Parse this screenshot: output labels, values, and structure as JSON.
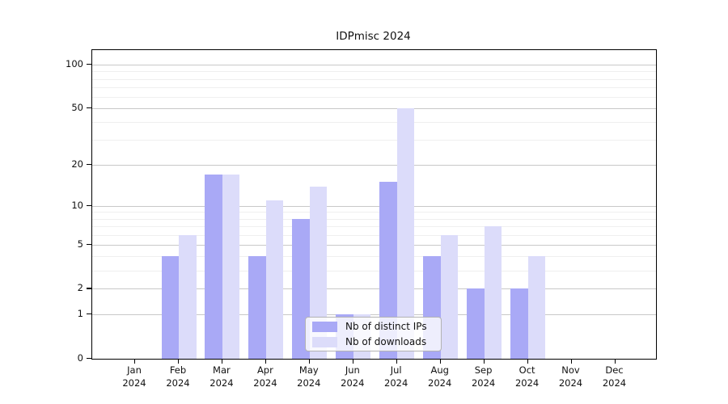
{
  "chart_data": {
    "type": "bar",
    "title": "IDPmisc 2024",
    "year": "2024",
    "categories": [
      "Jan",
      "Feb",
      "Mar",
      "Apr",
      "May",
      "Jun",
      "Jul",
      "Aug",
      "Sep",
      "Oct",
      "Nov",
      "Dec"
    ],
    "series": [
      {
        "name": "Nb of distinct IPs",
        "color": "#a9a9f6",
        "values": [
          0,
          4,
          17,
          4,
          8,
          1,
          15,
          4,
          2,
          2,
          0,
          0
        ]
      },
      {
        "name": "Nb of downloads",
        "color": "#dcdcfa",
        "values": [
          0,
          6,
          17,
          11,
          14,
          1,
          50,
          6,
          7,
          4,
          0,
          0
        ]
      }
    ],
    "yscale": "log1p",
    "ylim": [
      0,
      126
    ],
    "yticks": [
      0,
      1,
      2,
      5,
      10,
      20,
      50,
      100
    ],
    "yticks_minor": [
      3,
      4,
      6,
      7,
      8,
      9,
      30,
      40,
      60,
      70,
      80,
      90
    ],
    "grid": "horizontal",
    "legend_position": "inside-bottom-center",
    "colors": {
      "major_grid": "#c8c8c8",
      "minor_grid": "#efefef",
      "axis": "#000000",
      "background": "#ffffff"
    }
  }
}
